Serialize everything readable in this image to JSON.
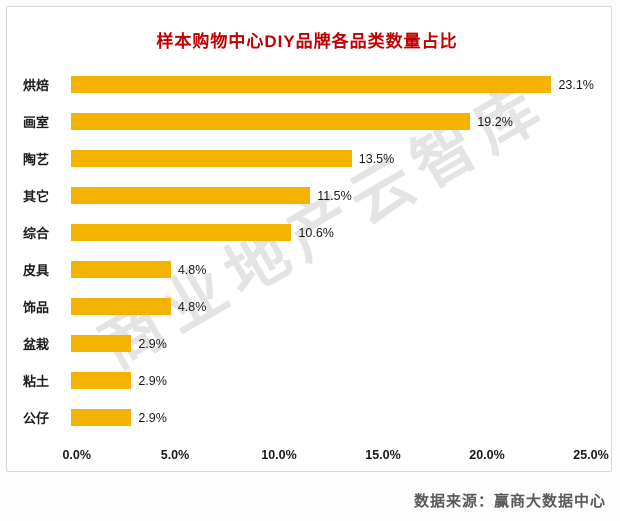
{
  "title": "样本购物中心DIY品牌各品类数量占比",
  "watermark": "商业地产云智库",
  "footer": {
    "source": "数据来源：赢商大数据中心"
  },
  "colors": {
    "bar": "#f3b300",
    "title": "#c00000",
    "footer_text": "#595959",
    "watermark": "#b9b9be"
  },
  "chart_data": {
    "type": "bar",
    "orientation": "horizontal",
    "title": "样本购物中心DIY品牌各品类数量占比",
    "categories": [
      "烘焙",
      "画室",
      "陶艺",
      "其它",
      "综合",
      "皮具",
      "饰品",
      "盆栽",
      "粘土",
      "公仔"
    ],
    "values": [
      23.1,
      19.2,
      13.5,
      11.5,
      10.6,
      4.8,
      4.8,
      2.9,
      2.9,
      2.9
    ],
    "value_labels": [
      "23.1%",
      "19.2%",
      "13.5%",
      "11.5%",
      "10.6%",
      "4.8%",
      "4.8%",
      "2.9%",
      "2.9%",
      "2.9%"
    ],
    "xlabel": "",
    "ylabel": "",
    "xlim": [
      0,
      25
    ],
    "x_ticks": [
      "0.0%",
      "5.0%",
      "10.0%",
      "15.0%",
      "20.0%",
      "25.0%"
    ],
    "grid": false,
    "legend": false,
    "data_labels": true
  }
}
